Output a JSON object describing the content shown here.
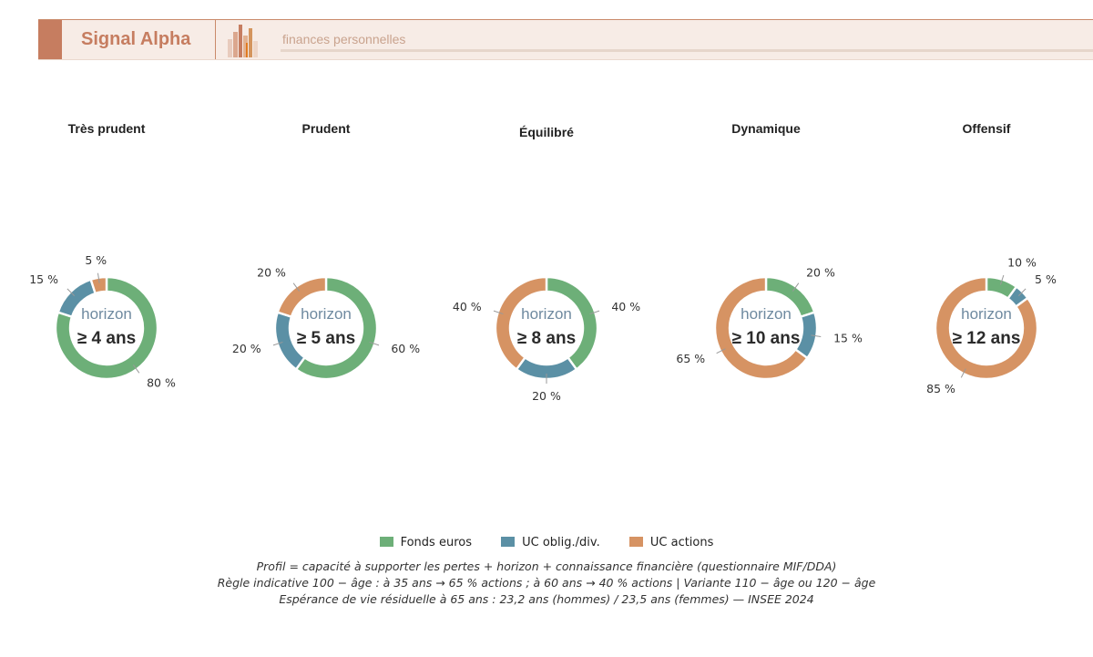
{
  "header": {
    "brand": "Signal Alpha",
    "subtitle": "finances personnelles",
    "logo_icon": "bar-chart-logo-icon",
    "colors": {
      "brand": "#c67d60",
      "band": "#f7ece6"
    }
  },
  "center_label": "horizon",
  "chart_data": [
    {
      "type": "pie",
      "title": "Très prudent",
      "center": "≥ 4 ans",
      "labels": [
        "Fonds euros",
        "UC oblig./div.",
        "UC actions"
      ],
      "values": [
        80,
        15,
        5
      ],
      "value_labels": [
        "80 %",
        "15 %",
        "5 %"
      ]
    },
    {
      "type": "pie",
      "title": "Prudent",
      "center": "≥ 5 ans",
      "labels": [
        "Fonds euros",
        "UC oblig./div.",
        "UC actions"
      ],
      "values": [
        60,
        20,
        20
      ],
      "value_labels": [
        "60 %",
        "20 %",
        "20 %"
      ]
    },
    {
      "type": "pie",
      "title": "Équilibré",
      "center": "≥ 8 ans",
      "labels": [
        "Fonds euros",
        "UC oblig./div.",
        "UC actions"
      ],
      "values": [
        40,
        20,
        40
      ],
      "value_labels": [
        "40 %",
        "20 %",
        "40 %"
      ]
    },
    {
      "type": "pie",
      "title": "Dynamique",
      "center": "≥ 10 ans",
      "labels": [
        "Fonds euros",
        "UC oblig./div.",
        "UC actions"
      ],
      "values": [
        20,
        15,
        65
      ],
      "value_labels": [
        "20 %",
        "15 %",
        "65 %"
      ]
    },
    {
      "type": "pie",
      "title": "Offensif",
      "center": "≥ 12 ans",
      "labels": [
        "Fonds euros",
        "UC oblig./div.",
        "UC actions"
      ],
      "values": [
        10,
        5,
        85
      ],
      "value_labels": [
        "10 %",
        "5 %",
        "85 %"
      ]
    }
  ],
  "legend": {
    "placement": "bottom-center",
    "items": [
      {
        "label": "Fonds euros",
        "color": "#6daf78"
      },
      {
        "label": "UC oblig./div.",
        "color": "#5b90a5"
      },
      {
        "label": "UC actions",
        "color": "#d69363"
      }
    ]
  },
  "notes": [
    "Profil = capacité à supporter les pertes + horizon + connaissance financière (questionnaire MIF/DDA)",
    "Règle indicative 100 − âge : à 35 ans → 65 % actions ; à 60 ans → 40 % actions | Variante 110 − âge ou 120 − âge",
    "Espérance de vie résiduelle à 65 ans : 23,2 ans (hommes) / 23,5 ans (femmes) — INSEE 2024"
  ]
}
